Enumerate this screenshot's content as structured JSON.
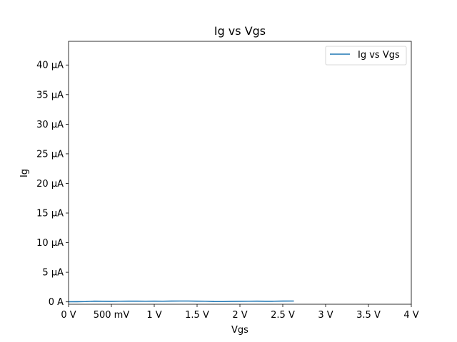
{
  "chart_data": {
    "type": "line",
    "title": "Ig vs Vgs",
    "xlabel": "Vgs",
    "ylabel": "Ig",
    "xlim": [
      0,
      4
    ],
    "ylim": [
      -0.4,
      44
    ],
    "x_ticks": [
      {
        "value": 0,
        "label": "0 V"
      },
      {
        "value": 0.5,
        "label": "500 mV"
      },
      {
        "value": 1,
        "label": "1 V"
      },
      {
        "value": 1.5,
        "label": "1.5 V"
      },
      {
        "value": 2,
        "label": "2 V"
      },
      {
        "value": 2.5,
        "label": "2.5 V"
      },
      {
        "value": 3,
        "label": "3 V"
      },
      {
        "value": 3.5,
        "label": "3.5 V"
      },
      {
        "value": 4,
        "label": "4 V"
      }
    ],
    "y_ticks": [
      {
        "value": 0,
        "label": "0 A"
      },
      {
        "value": 5,
        "label": "5 µA"
      },
      {
        "value": 10,
        "label": "10 µA"
      },
      {
        "value": 15,
        "label": "15 µA"
      },
      {
        "value": 20,
        "label": "20 µA"
      },
      {
        "value": 25,
        "label": "25 µA"
      },
      {
        "value": 30,
        "label": "30 µA"
      },
      {
        "value": 35,
        "label": "35 µA"
      },
      {
        "value": 40,
        "label": "40 µA"
      }
    ],
    "series": [
      {
        "name": "Ig vs Vgs",
        "color": "#1f77b4",
        "x": [
          0,
          0.1,
          0.2,
          0.3,
          0.4,
          0.5,
          0.6,
          0.7,
          0.8,
          0.9,
          1.0,
          1.1,
          1.2,
          1.3,
          1.4,
          1.5,
          1.6,
          1.7,
          1.8,
          1.9,
          2.0,
          2.1,
          2.2,
          2.3,
          2.4,
          2.5,
          2.63
        ],
        "y": [
          0.02,
          0.03,
          0.05,
          0.12,
          0.1,
          0.09,
          0.11,
          0.12,
          0.12,
          0.11,
          0.12,
          0.11,
          0.13,
          0.14,
          0.14,
          0.12,
          0.11,
          0.06,
          0.05,
          0.09,
          0.1,
          0.11,
          0.12,
          0.1,
          0.11,
          0.13,
          0.14
        ]
      }
    ],
    "grid": false,
    "legend_position": "top-right"
  }
}
